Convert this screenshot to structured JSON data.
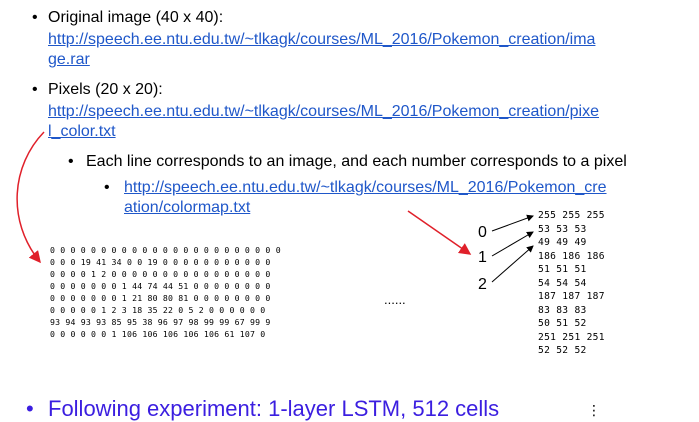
{
  "bullets": {
    "original": {
      "label": "Original image (40 x 40):",
      "link_line1": "http://speech.ee.ntu.edu.tw/~tlkagk/courses/ML_2016/Pokemon_creation/ima",
      "link_line2": "ge.rar"
    },
    "pixels": {
      "label": "Pixels (20 x 20):",
      "link_line1": "http://speech.ee.ntu.edu.tw/~tlkagk/courses/ML_2016/Pokemon_creation/pixe",
      "link_line2": "l_color.txt"
    },
    "each_line": {
      "label": "Each line corresponds to an image, and each number corresponds to a pixel"
    },
    "colormap": {
      "link_line1": "http://speech.ee.ntu.edu.tw/~tlkagk/courses/ML_2016/Pokemon_cre",
      "link_line2": "ation/colormap.txt"
    },
    "following": {
      "label": "Following experiment: 1-layer LSTM, 512 cells"
    }
  },
  "pixel_rows": [
    "0 0 0 0 0 0 0 0 0 0 0 0 0 0 0 0 0 0 0 0 0 0 0",
    "0 0 0 19 41 34 0 0 19 0 0 0 0 0 0 0 0 0 0 0",
    "0 0 0 0 1 2 0 0 0 0 0 0 0 0 0 0 0 0 0 0 0 0",
    "0 0 0 0 0 0 0 1 44 74 44 51 0 0 0 0 0 0 0 0",
    "0 0 0 0 0 0 0 1 21 80 80 81 0 0 0 0 0 0 0 0",
    "0 0 0 0 0 1 2 3 18 35 22 0 5 2 0 0 0 0 0 0",
    "93 94 93 93 85 95 38 96 97 98 99 99 67 99 9",
    "0 0 0 0 0 0 1 106 106 106 106 106 61 107 0"
  ],
  "pixel_ellipsis": "......",
  "colormap_rows": [
    "255 255 255",
    "53 53 53",
    "49 49 49",
    "186 186 186",
    "51 51 51",
    "54 54 54",
    "187 187 187",
    "83 83 83",
    "50 51 52",
    "251 251 251",
    "52 52 52"
  ],
  "colormap_ellipsis": "⋮",
  "indices": [
    "0",
    "1",
    "2"
  ],
  "colors": {
    "link": "#1f57c9",
    "final_text": "#3b1ee0",
    "red_arrow": "#e0202a"
  }
}
